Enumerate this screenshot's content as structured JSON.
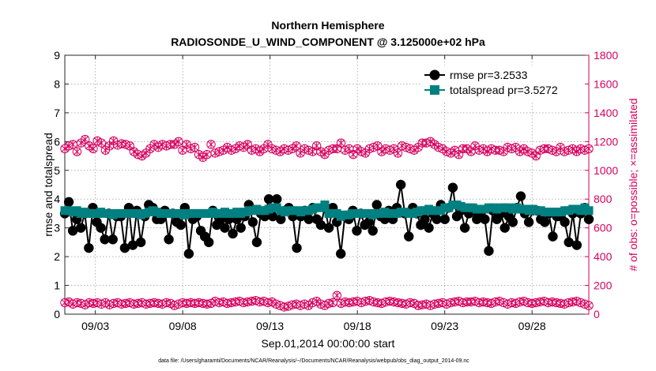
{
  "colors": {
    "rmse": "#000000",
    "spread": "#008080",
    "obs": "#d6005e",
    "axis": "#262626",
    "grid": "#262626"
  },
  "chart_data": {
    "type": "line",
    "title": "Northern Hemisphere",
    "subtitle": "RADIOSONDE_U_WIND_COMPONENT @ 3.125000e+02 hPa",
    "xlabel": "Sep.01,2014 00:00:00 start",
    "ylabel_left": "rmse and totalspread",
    "ylabel_right": "# of obs: o=possible; ×=assimilated",
    "footnote": "data file: /Users/gharamti/Documents/NCAR/Reanalysis/~/Documents/NCAR/Reanalysis/webpub/obs_diag_output_2014-09.nc",
    "xlim": [
      1.25,
      31.25
    ],
    "ylim_left": [
      0,
      9
    ],
    "ylim_right": [
      0,
      1800
    ],
    "x_ticks": [
      3,
      8,
      13,
      18,
      23,
      28
    ],
    "x_tick_labels": [
      "09/03",
      "09/08",
      "09/13",
      "09/18",
      "09/23",
      "09/28"
    ],
    "y_ticks_left": [
      0,
      1,
      2,
      3,
      4,
      5,
      6,
      7,
      8,
      9
    ],
    "y_ticks_right": [
      0,
      200,
      400,
      600,
      800,
      1000,
      1200,
      1400,
      1600,
      1800
    ],
    "legend": {
      "placement": "top-right",
      "entries": [
        "rmse pr=3.2533",
        "totalspread pr=3.5272"
      ]
    },
    "series": [
      {
        "name": "rmse",
        "axis": "left",
        "values": [
          3.5,
          3.9,
          2.9,
          3.3,
          3.0,
          3.5,
          2.3,
          3.7,
          3.2,
          3.0,
          2.6,
          3.5,
          2.6,
          3.4,
          3.4,
          2.3,
          3.7,
          2.4,
          3.6,
          2.5,
          3.4,
          3.8,
          3.7,
          3.3,
          3.3,
          3.6,
          2.6,
          3.5,
          3.2,
          3.1,
          3.7,
          2.1,
          3.3,
          3.4,
          2.9,
          2.7,
          2.5,
          3.6,
          3.1,
          3.3,
          3.0,
          3.3,
          2.8,
          3.3,
          3.0,
          3.4,
          3.8,
          3.2,
          2.5,
          3.5,
          3.4,
          4.0,
          3.4,
          4.0,
          3.3,
          3.6,
          3.7,
          3.4,
          2.3,
          3.4,
          3.6,
          3.3,
          3.7,
          3.3,
          3.1,
          3.7,
          3.0,
          3.7,
          3.2,
          2.1,
          3.4,
          3.3,
          3.6,
          2.9,
          3.5,
          3.1,
          3.2,
          2.9,
          3.8,
          3.4,
          3.3,
          3.6,
          3.3,
          3.7,
          4.5,
          3.5,
          2.7,
          3.7,
          3.5,
          3.1,
          3.3,
          3.0,
          3.5,
          3.3,
          3.8,
          3.3,
          3.7,
          4.4,
          3.4,
          3.6,
          3.0,
          3.5,
          3.6,
          3.3,
          3.5,
          3.3,
          2.2,
          3.6,
          3.3,
          3.5,
          3.0,
          3.4,
          3.2,
          3.7,
          4.1,
          3.5,
          3.2,
          3.6,
          3.6,
          3.3,
          3.2,
          3.5,
          2.7,
          3.4,
          3.4,
          3.2,
          2.5,
          3.5,
          2.4,
          3.5,
          3.7,
          3.3
        ]
      },
      {
        "name": "totalspread",
        "axis": "left",
        "values": [
          3.6,
          3.6,
          3.55,
          3.6,
          3.5,
          3.55,
          3.5,
          3.5,
          3.5,
          3.55,
          3.5,
          3.5,
          3.45,
          3.5,
          3.5,
          3.5,
          3.5,
          3.5,
          3.5,
          3.45,
          3.5,
          3.55,
          3.6,
          3.55,
          3.5,
          3.5,
          3.5,
          3.5,
          3.5,
          3.5,
          3.45,
          3.5,
          3.5,
          3.5,
          3.5,
          3.5,
          3.5,
          3.55,
          3.5,
          3.5,
          3.55,
          3.5,
          3.5,
          3.55,
          3.5,
          3.55,
          3.6,
          3.6,
          3.65,
          3.6,
          3.6,
          3.65,
          3.7,
          3.7,
          3.6,
          3.55,
          3.6,
          3.6,
          3.6,
          3.55,
          3.6,
          3.6,
          3.65,
          3.7,
          3.7,
          3.8,
          3.5,
          3.5,
          3.5,
          3.4,
          3.45,
          3.45,
          3.5,
          3.5,
          3.5,
          3.5,
          3.5,
          3.45,
          3.5,
          3.5,
          3.55,
          3.5,
          3.5,
          3.5,
          3.55,
          3.55,
          3.5,
          3.5,
          3.55,
          3.6,
          3.6,
          3.65,
          3.6,
          3.6,
          3.6,
          3.7,
          3.7,
          3.8,
          3.8,
          3.75,
          3.7,
          3.7,
          3.7,
          3.65,
          3.65,
          3.65,
          3.7,
          3.7,
          3.65,
          3.7,
          3.7,
          3.7,
          3.65,
          3.7,
          3.65,
          3.65,
          3.6,
          3.65,
          3.6,
          3.6,
          3.55,
          3.55,
          3.55,
          3.55,
          3.55,
          3.6,
          3.6,
          3.65,
          3.65,
          3.6,
          3.7,
          3.6
        ]
      },
      {
        "name": "obs possible (upper)",
        "axis": "right",
        "values": [
          1150,
          1170,
          1180,
          1130,
          1190,
          1215,
          1170,
          1150,
          1205,
          1190,
          1140,
          1170,
          1205,
          1175,
          1185,
          1180,
          1170,
          1130,
          1110,
          1100,
          1120,
          1150,
          1180,
          1160,
          1180,
          1170,
          1180,
          1180,
          1200,
          1140,
          1180,
          1150,
          1160,
          1110,
          1090,
          1110,
          1180,
          1120,
          1130,
          1140,
          1160,
          1140,
          1150,
          1170,
          1160,
          1180,
          1140,
          1150,
          1130,
          1150,
          1180,
          1150,
          1140,
          1130,
          1150,
          1140,
          1150,
          1170,
          1120,
          1150,
          1140,
          1130,
          1170,
          1130,
          1110,
          1140,
          1150,
          1150,
          1190,
          1140,
          1150,
          1110,
          1150,
          1130,
          1120,
          1150,
          1160,
          1170,
          1130,
          1150,
          1140,
          1150,
          1120,
          1170,
          1160,
          1150,
          1140,
          1160,
          1190,
          1190,
          1200,
          1180,
          1160,
          1150,
          1130,
          1120,
          1140,
          1110,
          1150,
          1150,
          1130,
          1170,
          1140,
          1150,
          1130,
          1150,
          1140,
          1140,
          1130,
          1160,
          1150,
          1160,
          1130,
          1150,
          1130,
          1120,
          1100,
          1140,
          1150,
          1150,
          1140,
          1130,
          1160,
          1130,
          1140,
          1150,
          1130,
          1150,
          1140,
          1150
        ]
      },
      {
        "name": "obs possible (lower)",
        "axis": "right",
        "values": [
          80,
          85,
          70,
          80,
          75,
          65,
          80,
          75,
          80,
          70,
          80,
          65,
          75,
          80,
          70,
          75,
          80,
          70,
          75,
          80,
          70,
          75,
          80,
          75,
          70,
          80,
          75,
          60,
          70,
          80,
          75,
          80,
          75,
          80,
          75,
          70,
          75,
          90,
          80,
          85,
          75,
          80,
          85,
          90,
          80,
          85,
          90,
          95,
          85,
          90,
          80,
          85,
          70,
          60,
          50,
          55,
          65,
          70,
          60,
          70,
          60,
          80,
          90,
          70,
          60,
          75,
          80,
          130,
          75,
          85,
          80,
          85,
          90,
          80,
          90,
          95,
          85,
          80,
          75,
          85,
          90,
          85,
          80,
          75,
          70,
          80,
          75,
          60,
          65,
          70,
          60,
          70,
          75,
          80,
          70,
          80,
          85,
          90,
          80,
          85,
          85,
          90,
          80,
          85,
          80,
          75,
          85,
          90,
          80,
          70,
          80,
          75,
          85,
          90,
          80,
          75,
          80,
          85,
          90,
          80,
          85,
          80,
          75,
          70,
          80,
          85,
          90,
          80,
          70,
          60
        ]
      }
    ]
  }
}
